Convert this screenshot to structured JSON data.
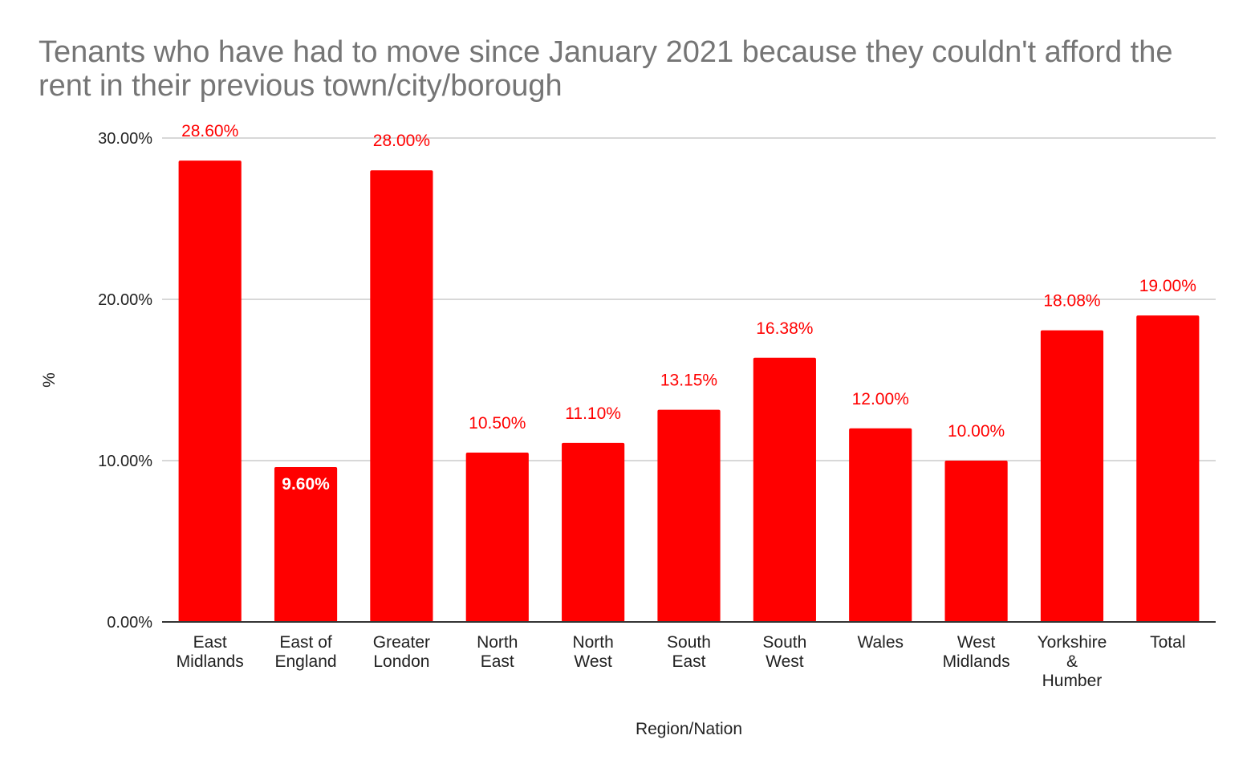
{
  "chart_data": {
    "type": "bar",
    "title": "Tenants who have had to move since January 2021 because they couldn't afford the rent in their previous town/city/borough",
    "xlabel": "Region/Nation",
    "ylabel": "%",
    "categories": [
      [
        "East",
        "Midlands"
      ],
      [
        "East of",
        "England"
      ],
      [
        "Greater",
        "London"
      ],
      [
        "North",
        "East"
      ],
      [
        "North",
        "West"
      ],
      [
        "South",
        "East"
      ],
      [
        "South",
        "West"
      ],
      [
        "Wales"
      ],
      [
        "West",
        "Midlands"
      ],
      [
        "Yorkshire",
        "&",
        "Humber"
      ],
      [
        "Total"
      ]
    ],
    "values": [
      28.6,
      9.6,
      28.0,
      10.5,
      11.1,
      13.15,
      16.38,
      12.0,
      10.0,
      18.08,
      19.0
    ],
    "data_labels": [
      "28.60%",
      "9.60%",
      "28.00%",
      "10.50%",
      "11.10%",
      "13.15%",
      "16.38%",
      "12.00%",
      "10.00%",
      "18.08%",
      "19.00%"
    ],
    "label_inside": [
      false,
      true,
      false,
      false,
      false,
      false,
      false,
      false,
      false,
      false,
      false
    ],
    "yticks": [
      0,
      10,
      20,
      30
    ],
    "ytick_labels": [
      "0.00%",
      "10.00%",
      "20.00%",
      "30.00%"
    ],
    "ylim": [
      0,
      30
    ],
    "grid": true,
    "legend": "none",
    "colors": {
      "bar": "#ff0000",
      "label_outside": "#ff0000",
      "label_inside": "#ffffff",
      "gridline": "#cccccc",
      "baseline": "#333333",
      "title": "#757575"
    }
  }
}
